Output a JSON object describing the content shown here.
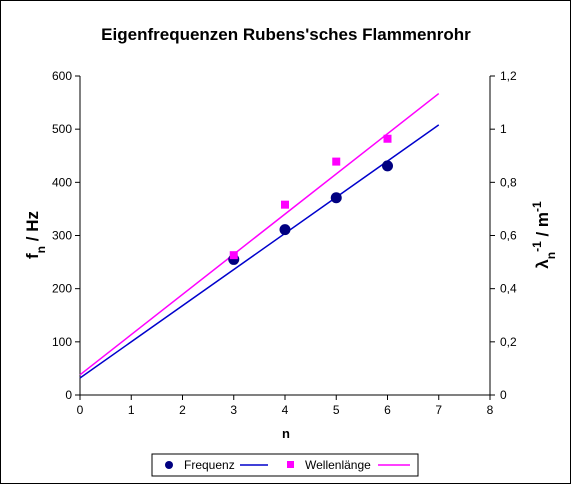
{
  "chart_data": {
    "type": "scatter",
    "title": "Eigenfrequenzen Rubens'sches Flammenrohr",
    "xlabel": "n",
    "ylabel_left": {
      "main": "f",
      "sub": "n",
      "rest": " / Hz"
    },
    "ylabel_right": {
      "main": "λ",
      "sub": "n",
      "sup": "-1",
      "mid": " / m",
      "sup2": "-1"
    },
    "xlim": [
      0,
      8
    ],
    "ylim_left": [
      0,
      600
    ],
    "ylim_right": [
      0,
      1.2
    ],
    "x_ticks": [
      "0",
      "1",
      "2",
      "3",
      "4",
      "5",
      "6",
      "7",
      "8"
    ],
    "y_left_ticks": [
      "0",
      "100",
      "200",
      "300",
      "400",
      "500",
      "600"
    ],
    "y_right_ticks": [
      "0",
      "0,2",
      "0,4",
      "0,6",
      "0,8",
      "1",
      "1,2"
    ],
    "grid": false,
    "legend_position": "bottom",
    "series": [
      {
        "name": "Frequenz",
        "axis": "left",
        "marker": "circle",
        "color": "#000080",
        "x": [
          3,
          4,
          5,
          6
        ],
        "y": [
          255,
          311,
          371,
          431
        ],
        "trendline": {
          "color": "#0000CC",
          "x": [
            0,
            7
          ],
          "y": [
            32,
            508
          ]
        }
      },
      {
        "name": "Wellenlänge",
        "axis": "right",
        "marker": "square",
        "color": "#FF00FF",
        "x": [
          3,
          4,
          5,
          6
        ],
        "y": [
          0.526,
          0.716,
          0.878,
          0.964
        ],
        "trendline": {
          "color": "#FF00FF",
          "x": [
            0,
            7
          ],
          "y": [
            0.076,
            1.134
          ]
        }
      }
    ]
  }
}
